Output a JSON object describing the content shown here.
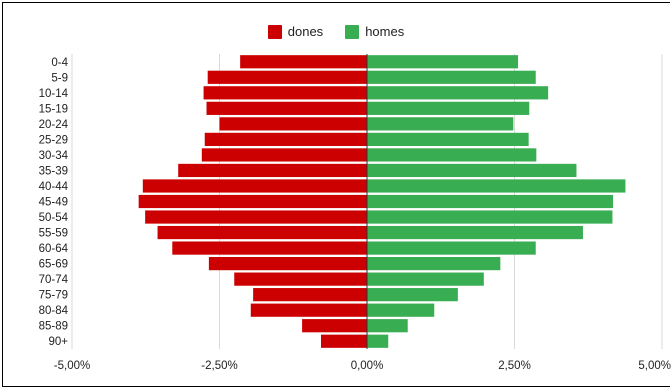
{
  "chart_data": {
    "type": "bar",
    "orientation": "horizontal",
    "legend_position": "top",
    "grid": "vertical",
    "categories": [
      "0-4",
      "5-9",
      "10-14",
      "15-19",
      "20-24",
      "25-29",
      "30-34",
      "35-39",
      "40-44",
      "45-49",
      "50-54",
      "55-59",
      "60-64",
      "65-69",
      "70-74",
      "75-79",
      "80-84",
      "85-89",
      "90+"
    ],
    "series": [
      {
        "name": "dones",
        "color": "#cc0000",
        "values": [
          -2.15,
          -2.7,
          -2.77,
          -2.72,
          -2.5,
          -2.75,
          -2.8,
          -3.2,
          -3.8,
          -3.87,
          -3.76,
          -3.55,
          -3.3,
          -2.68,
          -2.25,
          -1.93,
          -1.97,
          -1.1,
          -0.78
        ]
      },
      {
        "name": "homes",
        "color": "#38ad52",
        "values": [
          2.56,
          2.86,
          3.07,
          2.75,
          2.48,
          2.74,
          2.87,
          3.55,
          4.38,
          4.17,
          4.16,
          3.66,
          2.86,
          2.26,
          1.98,
          1.54,
          1.14,
          0.69,
          0.36
        ]
      }
    ],
    "xlim": [
      -5,
      5
    ],
    "xticks": [
      {
        "value": -5,
        "label": "-5,00%"
      },
      {
        "value": -2.5,
        "label": "-2,50%"
      },
      {
        "value": 0,
        "label": "0,00%"
      },
      {
        "value": 2.5,
        "label": "2,50%"
      },
      {
        "value": 5,
        "label": "5,00%"
      }
    ]
  }
}
